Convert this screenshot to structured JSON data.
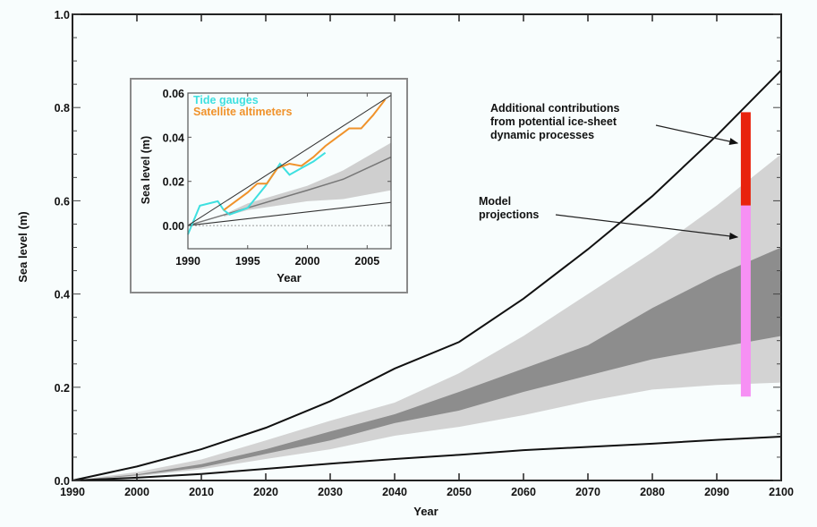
{
  "chart_data": [
    {
      "id": "main",
      "type": "area",
      "title": "",
      "xlabel": "Year",
      "ylabel": "Sea level (m)",
      "xlim": [
        1990,
        2100
      ],
      "ylim": [
        0.0,
        1.0
      ],
      "x_ticks": [
        1990,
        2000,
        2010,
        2020,
        2030,
        2040,
        2050,
        2060,
        2070,
        2080,
        2090,
        2100
      ],
      "x_tick_labels": [
        "1990",
        "2000",
        "2010",
        "2020",
        "2030",
        "2040",
        "2050",
        "2060",
        "2070",
        "2080",
        "2090",
        "2100"
      ],
      "y_ticks": [
        0.0,
        0.2,
        0.4,
        0.6,
        0.8,
        1.0
      ],
      "y_tick_labels": [
        "0.0",
        "0.2",
        "0.4",
        "0.6",
        "0.8",
        "1.0"
      ],
      "y_minor_step": 0.05,
      "grid": false,
      "x": [
        1990,
        2000,
        2010,
        2020,
        2030,
        2040,
        2050,
        2060,
        2070,
        2080,
        2090,
        2100
      ],
      "series": [
        {
          "name": "Outer range (light band) upper",
          "values": [
            0.0,
            0.018,
            0.045,
            0.086,
            0.128,
            0.167,
            0.23,
            0.31,
            0.4,
            0.49,
            0.59,
            0.7
          ]
        },
        {
          "name": "Inner range (dark band) upper",
          "values": [
            0.0,
            0.013,
            0.035,
            0.067,
            0.105,
            0.142,
            0.19,
            0.24,
            0.29,
            0.37,
            0.44,
            0.5
          ]
        },
        {
          "name": "Inner range (dark band) lower",
          "values": [
            0.0,
            0.011,
            0.028,
            0.057,
            0.086,
            0.123,
            0.15,
            0.19,
            0.225,
            0.26,
            0.285,
            0.31
          ]
        },
        {
          "name": "Outer range (light band) lower",
          "values": [
            0.0,
            0.009,
            0.024,
            0.046,
            0.067,
            0.096,
            0.115,
            0.14,
            0.17,
            0.195,
            0.205,
            0.21
          ]
        },
        {
          "name": "Upper black curve",
          "values": [
            0.0,
            0.03,
            0.067,
            0.113,
            0.17,
            0.24,
            0.297,
            0.39,
            0.496,
            0.61,
            0.74,
            0.88
          ]
        },
        {
          "name": "Lower black curve",
          "values": [
            0.0,
            0.006,
            0.014,
            0.025,
            0.036,
            0.046,
            0.055,
            0.065,
            0.072,
            0.079,
            0.087,
            0.094
          ]
        }
      ],
      "bars": [
        {
          "name": "Model projections",
          "x": 2094.5,
          "from": 0.18,
          "to": 0.59,
          "color": "#f690f4"
        },
        {
          "name": "Additional contributions from potential ice-sheet dynamic processes",
          "x": 2094.5,
          "from": 0.59,
          "to": 0.79,
          "color": "#e8230d"
        }
      ],
      "annotations": [
        {
          "lines": [
            "Additional contributions",
            "from potential ice-sheet",
            "dynamic processes"
          ],
          "arrow_to_year": 2093.5,
          "arrow_to_value": 0.72
        },
        {
          "lines": [
            "Model",
            "projections"
          ],
          "arrow_to_year": 2093.5,
          "arrow_to_value": 0.52
        }
      ],
      "colors": {
        "light_band": "#d3d3d3",
        "dark_band": "#8d8d8d",
        "curve": "#111111"
      }
    },
    {
      "id": "inset",
      "type": "line",
      "title": "",
      "xlabel": "Year",
      "ylabel": "Sea level (m)",
      "xlim": [
        1990,
        2007
      ],
      "ylim": [
        -0.0105,
        0.06
      ],
      "x_ticks": [
        1990,
        1995,
        2000,
        2005
      ],
      "x_tick_labels": [
        "1990",
        "1995",
        "2000",
        "2005"
      ],
      "y_ticks": [
        0.0,
        0.02,
        0.04,
        0.06
      ],
      "y_tick_labels": [
        "0.00",
        "0.02",
        "0.04",
        "0.06"
      ],
      "legend": {
        "placement": "top-left",
        "entries": [
          {
            "label": "Tide gauges",
            "color": "#3ee0e0"
          },
          {
            "label": "Satellite altimeters",
            "color": "#f0922a"
          }
        ]
      },
      "series": [
        {
          "name": "Tide gauges",
          "color": "#3ee0e0",
          "x": [
            1990,
            1991,
            1992.5,
            1993,
            1993.5,
            1995,
            1996.5,
            1997.7,
            1998.5,
            1999.5,
            2000.5,
            2001.5
          ],
          "values": [
            -0.004,
            0.009,
            0.011,
            0.007,
            0.005,
            0.008,
            0.018,
            0.028,
            0.023,
            0.026,
            0.029,
            0.033
          ]
        },
        {
          "name": "Satellite altimeters",
          "color": "#f0922a",
          "x": [
            1993,
            1994,
            1995,
            1995.8,
            1996.6,
            1997.5,
            1998.5,
            1999.5,
            2000.5,
            2001.5,
            2002.5,
            2003.5,
            2004.5,
            2005.5,
            2006.5
          ],
          "values": [
            0.007,
            0.011,
            0.015,
            0.019,
            0.019,
            0.026,
            0.028,
            0.027,
            0.031,
            0.036,
            0.04,
            0.044,
            0.044,
            0.05,
            0.057
          ]
        },
        {
          "name": "Observed trend",
          "color": "#333333",
          "x": [
            1990,
            2007
          ],
          "values": [
            0.0,
            0.059
          ]
        },
        {
          "name": "Projection band upper",
          "x": [
            1993,
            1995,
            2000,
            2003,
            2007
          ],
          "values": [
            0.005,
            0.01,
            0.018,
            0.025,
            0.0375
          ]
        },
        {
          "name": "Projection band lower",
          "x": [
            1993,
            1995,
            2000,
            2003,
            2007
          ],
          "values": [
            0.004,
            0.007,
            0.011,
            0.012,
            0.016
          ]
        },
        {
          "name": "Projection central",
          "color": "#777777",
          "x": [
            1990,
            1995,
            2000,
            2003,
            2007
          ],
          "values": [
            0.0,
            0.008,
            0.016,
            0.021,
            0.031
          ]
        },
        {
          "name": "Lower projection line",
          "color": "#333333",
          "x": [
            1990,
            2007
          ],
          "values": [
            0.0,
            0.0105
          ]
        },
        {
          "name": "Zero reference",
          "color": "#999999",
          "x": [
            1990,
            2007
          ],
          "values": [
            0.0,
            0.0
          ]
        }
      ]
    }
  ]
}
